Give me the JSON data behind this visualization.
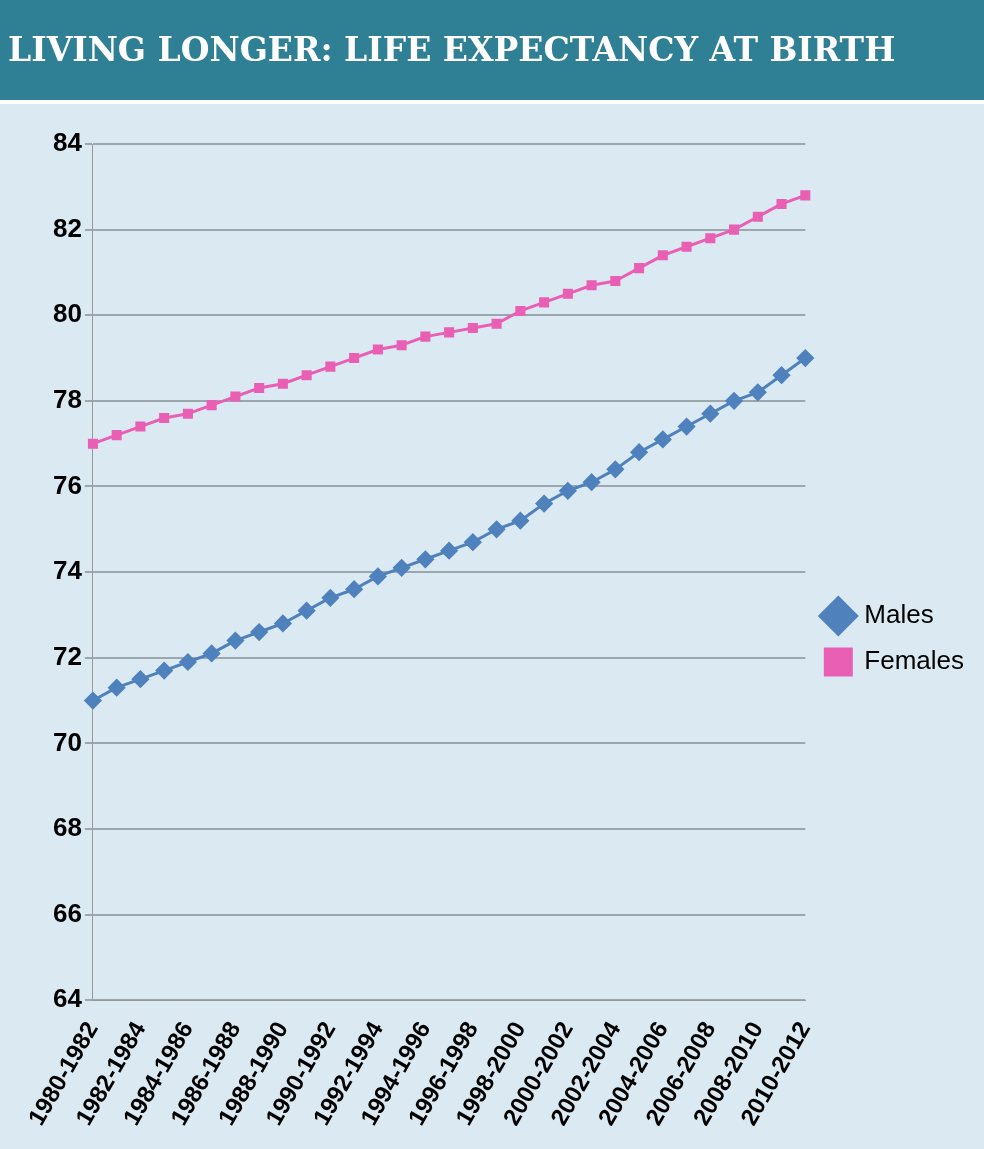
{
  "chart_data": {
    "type": "line",
    "title": "LIVING LONGER: LIFE EXPECTANCY AT BIRTH",
    "categories": [
      "1980-1982",
      null,
      "1982-1984",
      null,
      "1984-1986",
      null,
      "1986-1988",
      null,
      "1988-1990",
      null,
      "1990-1992",
      null,
      "1992-1994",
      null,
      "1994-1996",
      null,
      "1996-1998",
      null,
      "1998-2000",
      null,
      "2000-2002",
      null,
      "2002-2004",
      null,
      "2004-2006",
      null,
      "2006-2008",
      null,
      "2008-2010",
      null,
      "2010-2012"
    ],
    "series": [
      {
        "name": "Males",
        "color": "#4f81bd",
        "marker": "diamond",
        "values": [
          71.0,
          71.3,
          71.5,
          71.7,
          71.9,
          72.1,
          72.4,
          72.6,
          72.8,
          73.1,
          73.4,
          73.6,
          73.9,
          74.1,
          74.3,
          74.5,
          74.7,
          75.0,
          75.2,
          75.6,
          75.9,
          76.1,
          76.4,
          76.8,
          77.1,
          77.4,
          77.7,
          78.0,
          78.2,
          78.6,
          79.0
        ]
      },
      {
        "name": "Females",
        "color": "#e85fb4",
        "marker": "square",
        "values": [
          77.0,
          77.2,
          77.4,
          77.6,
          77.7,
          77.9,
          78.1,
          78.3,
          78.4,
          78.6,
          78.8,
          79.0,
          79.2,
          79.3,
          79.5,
          79.6,
          79.7,
          79.8,
          80.1,
          80.3,
          80.5,
          80.7,
          80.8,
          81.1,
          81.4,
          81.6,
          81.8,
          82.0,
          82.3,
          82.6,
          82.8
        ]
      }
    ],
    "ylim": [
      64,
      84
    ],
    "yticks": [
      64,
      66,
      68,
      70,
      72,
      74,
      76,
      78,
      80,
      82,
      84
    ],
    "grid": "y",
    "legend": "right"
  }
}
